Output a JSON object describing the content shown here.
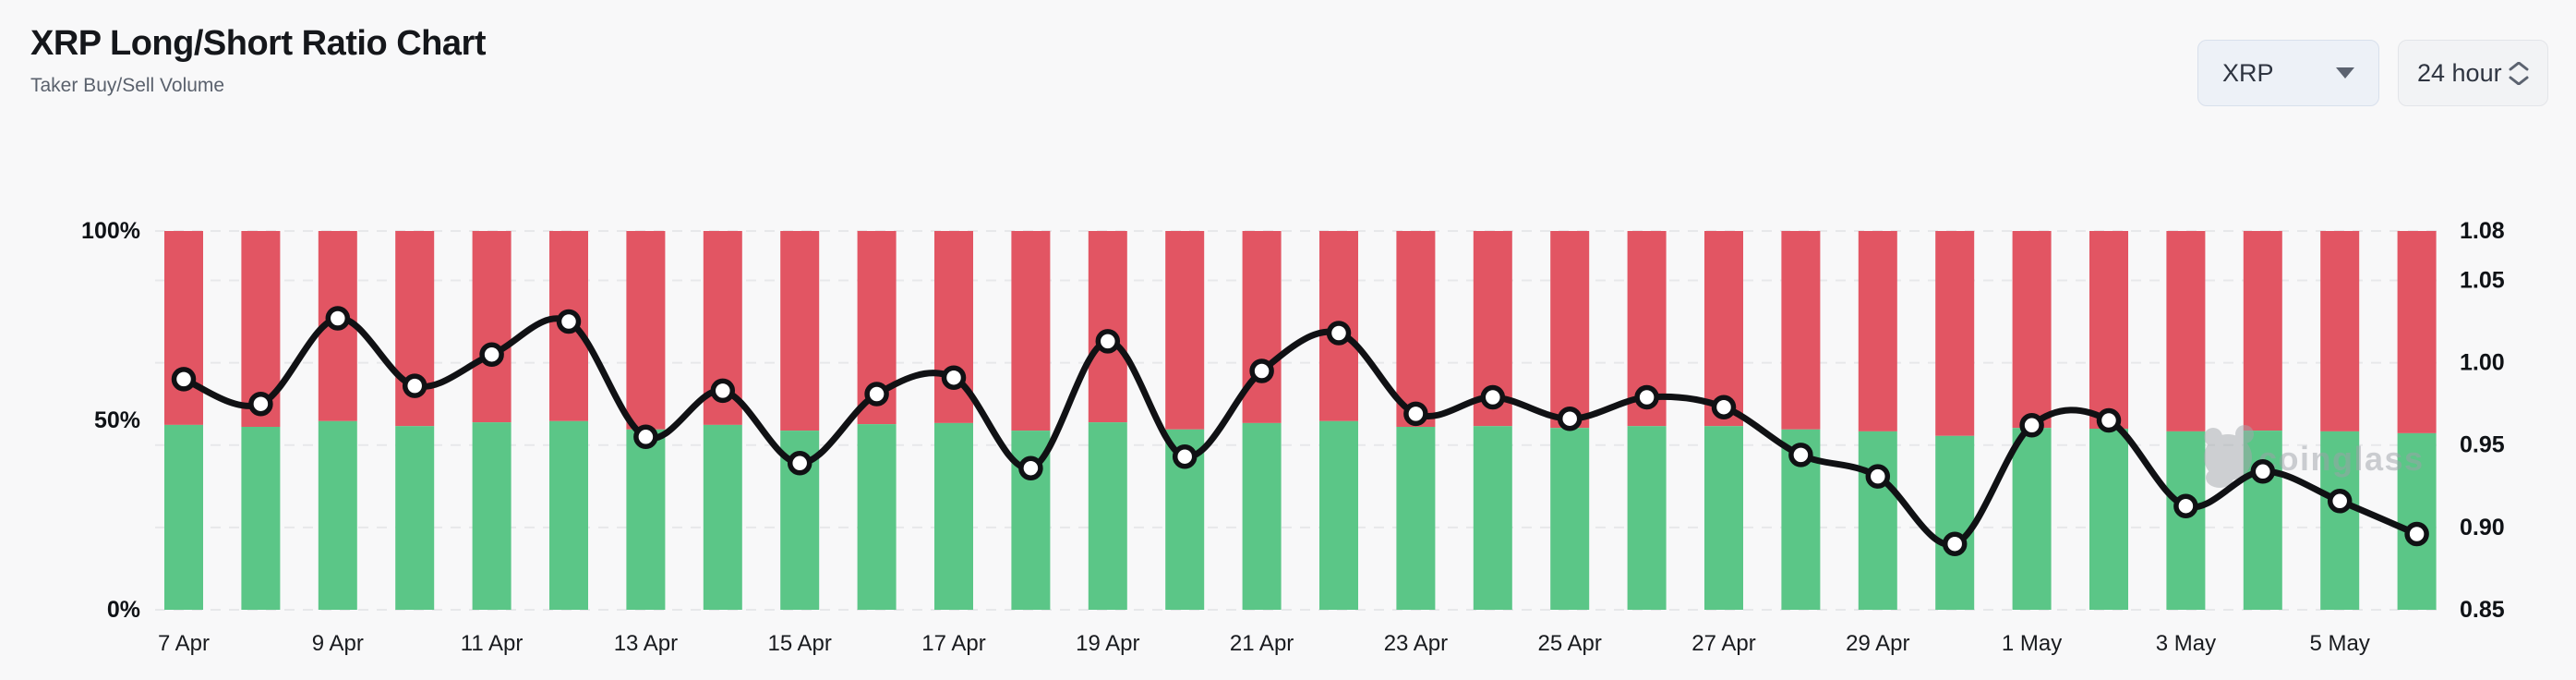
{
  "header": {
    "title": "XRP Long/Short Ratio Chart",
    "subtitle": "Taker Buy/Sell Volume"
  },
  "controls": {
    "symbol_select": {
      "value": "XRP",
      "icon": "chevron-down-icon"
    },
    "interval_select": {
      "value": "24 hour",
      "icon": "up-down-chevrons-icon"
    }
  },
  "watermark": {
    "text": "coinglass",
    "icon": "panda-logo-icon"
  },
  "chart_data": {
    "type": "bar",
    "subtype": "stacked-percent-bars-with-line-overlay",
    "title": "XRP Long/Short Ratio Chart",
    "categories": [
      "7 Apr",
      "8 Apr",
      "9 Apr",
      "10 Apr",
      "11 Apr",
      "12 Apr",
      "13 Apr",
      "14 Apr",
      "15 Apr",
      "16 Apr",
      "17 Apr",
      "18 Apr",
      "19 Apr",
      "20 Apr",
      "21 Apr",
      "22 Apr",
      "23 Apr",
      "24 Apr",
      "25 Apr",
      "26 Apr",
      "27 Apr",
      "28 Apr",
      "29 Apr",
      "30 Apr",
      "1 May",
      "2 May",
      "3 May",
      "4 May",
      "5 May",
      "6 May"
    ],
    "x_tick_labels": [
      "7 Apr",
      "9 Apr",
      "11 Apr",
      "13 Apr",
      "15 Apr",
      "17 Apr",
      "19 Apr",
      "21 Apr",
      "23 Apr",
      "25 Apr",
      "27 Apr",
      "29 Apr",
      "1 May",
      "3 May",
      "5 May"
    ],
    "x_label_every": 2,
    "series": [
      {
        "name": "Taker Buy Volume %",
        "type": "bar",
        "color": "#5bc687",
        "values": [
          48.8,
          48.3,
          49.8,
          48.5,
          49.5,
          49.8,
          47.6,
          48.8,
          47.3,
          49.0,
          49.3,
          47.3,
          49.5,
          47.6,
          49.3,
          49.8,
          48.3,
          48.5,
          48.0,
          48.5,
          48.5,
          47.6,
          47.1,
          45.9,
          48.0,
          47.8,
          47.1,
          47.3,
          47.1,
          46.6
        ]
      },
      {
        "name": "Taker Sell Volume %",
        "type": "bar",
        "color": "#e25563",
        "values": [
          51.2,
          51.7,
          50.2,
          51.5,
          50.5,
          50.2,
          52.4,
          51.2,
          52.7,
          51.0,
          50.7,
          52.7,
          50.5,
          52.4,
          50.7,
          50.2,
          51.7,
          51.5,
          52.0,
          51.5,
          51.5,
          52.4,
          52.9,
          54.1,
          52.0,
          52.2,
          52.9,
          52.7,
          52.9,
          53.4
        ]
      },
      {
        "name": "Long/Short Ratio",
        "type": "line",
        "color": "#101114",
        "values": [
          0.99,
          0.975,
          1.027,
          0.986,
          1.005,
          1.025,
          0.955,
          0.983,
          0.939,
          0.981,
          0.991,
          0.936,
          1.013,
          0.943,
          0.995,
          1.018,
          0.969,
          0.979,
          0.966,
          0.979,
          0.973,
          0.944,
          0.931,
          0.89,
          0.962,
          0.965,
          0.913,
          0.934,
          0.916,
          0.896
        ]
      }
    ],
    "left_axis": {
      "range": [
        0,
        100
      ],
      "ticks": [
        {
          "label": "100%",
          "value": 100
        },
        {
          "label": "50%",
          "value": 50
        },
        {
          "label": "0%",
          "value": 0
        }
      ]
    },
    "right_axis": {
      "range": [
        0.85,
        1.08
      ],
      "ticks": [
        {
          "label": "1.08",
          "value": 1.08
        },
        {
          "label": "1.05",
          "value": 1.05
        },
        {
          "label": "1.00",
          "value": 1.0
        },
        {
          "label": "0.95",
          "value": 0.95
        },
        {
          "label": "0.90",
          "value": 0.9
        },
        {
          "label": "0.85",
          "value": 0.85
        }
      ]
    },
    "grid": "horizontal-dashed",
    "legend": "none"
  }
}
